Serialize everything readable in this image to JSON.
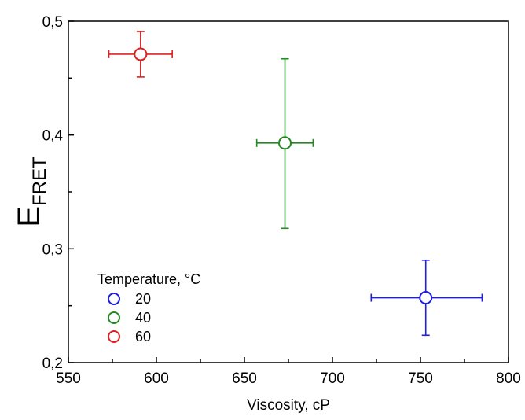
{
  "chart_data": {
    "type": "scatter",
    "xlabel": "Viscosity, cP",
    "ylabel_main": "E",
    "ylabel_sub": "FRET",
    "xlim": [
      550,
      800
    ],
    "ylim": [
      0.2,
      0.5
    ],
    "x_ticks": [
      550,
      600,
      650,
      700,
      750,
      800
    ],
    "x_tick_labels": [
      "550",
      "600",
      "650",
      "700",
      "750",
      "800"
    ],
    "y_ticks": [
      0.2,
      0.3,
      0.4,
      0.5
    ],
    "y_tick_labels": [
      "0,2",
      "0,3",
      "0,4",
      "0,5"
    ],
    "grid": false,
    "legend": {
      "title": "Temperature, °C",
      "placement": "bottom-left"
    },
    "series": [
      {
        "name": "20",
        "color": "#1f1fe0",
        "x": 753,
        "y": 0.257,
        "xerr": [
          722,
          785
        ],
        "yerr": [
          0.224,
          0.29
        ]
      },
      {
        "name": "40",
        "color": "#238a23",
        "x": 673,
        "y": 0.393,
        "xerr": [
          657,
          689
        ],
        "yerr": [
          0.318,
          0.467
        ]
      },
      {
        "name": "60",
        "color": "#e02020",
        "x": 591,
        "y": 0.471,
        "xerr": [
          573,
          609
        ],
        "yerr": [
          0.451,
          0.491
        ]
      }
    ]
  }
}
